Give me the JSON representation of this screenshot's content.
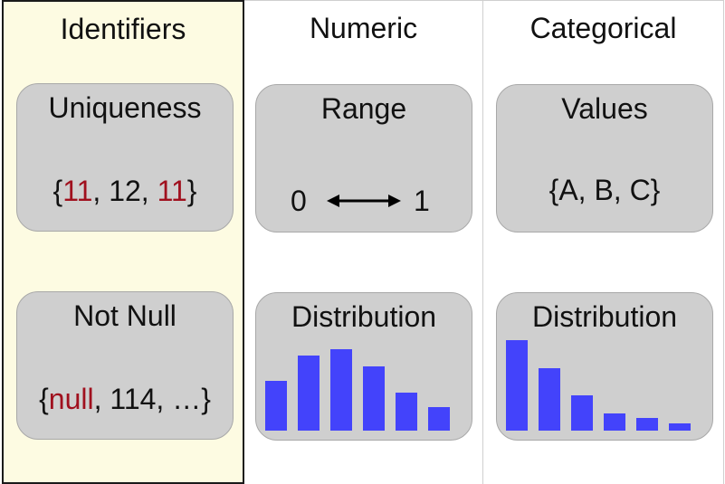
{
  "columns": [
    {
      "title": "Identifiers"
    },
    {
      "title": "Numeric"
    },
    {
      "title": "Categorical"
    }
  ],
  "identifiers": {
    "uniqueness": {
      "title": "Uniqueness",
      "values": [
        "11",
        "12",
        "11"
      ]
    },
    "not_null": {
      "title": "Not Null",
      "values": [
        "null",
        "114",
        "…"
      ]
    }
  },
  "numeric": {
    "range": {
      "title": "Range",
      "low": "0",
      "high": "1"
    },
    "distribution": {
      "title": "Distribution",
      "values": [
        0.55,
        0.83,
        0.9,
        0.71,
        0.42,
        0.26
      ]
    }
  },
  "categorical": {
    "values": {
      "title": "Values",
      "text": "{A, B, C}"
    },
    "distribution": {
      "title": "Distribution",
      "values": [
        1.0,
        0.69,
        0.39,
        0.19,
        0.14,
        0.08
      ]
    }
  },
  "colors": {
    "bar": "#4343fb",
    "highlight": "#a0101e",
    "card": "#cfcfcf",
    "identifier_bg": "#fdfbe2"
  }
}
